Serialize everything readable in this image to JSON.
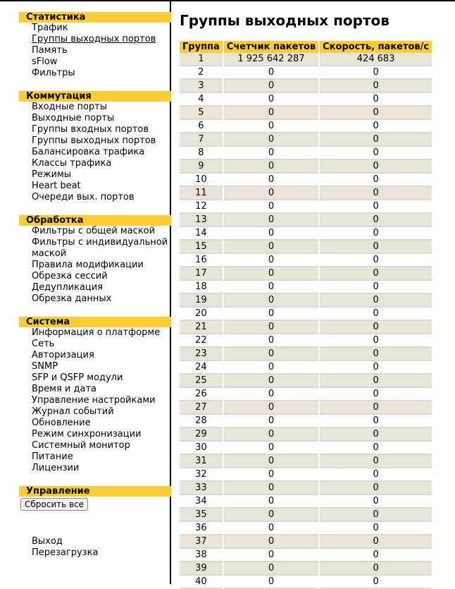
{
  "sidebar": {
    "statistics": {
      "title": "Статистика",
      "items": [
        "Трафик",
        "Группы выходных портов",
        "Память",
        "sFlow",
        "Фильтры"
      ]
    },
    "switching": {
      "title": "Коммутация",
      "items": [
        "Входные порты",
        "Выходные порты",
        "Группы входных портов",
        "Группы выходных портов",
        "Балансировка трафика",
        "Классы трафика",
        "Режимы",
        "Heart beat",
        "Очереди вых. портов"
      ]
    },
    "processing": {
      "title": "Обработка",
      "items": [
        "Фильтры с общей маской",
        "Фильтры с индивидуальной маской",
        "Правила модификации",
        "Обрезка сессий",
        "Дедупликация",
        "Обрезка данных"
      ]
    },
    "system": {
      "title": "Система",
      "items": [
        "Информация о платформе",
        "Сеть",
        "Авторизация",
        "SNMP",
        "SFP и QSFP модули",
        "Время и дата",
        "Управление настройками",
        "Журнал событий",
        "Обновление",
        "Режим синхронизации",
        "Системный монитор",
        "Питание",
        "Лицензии"
      ]
    },
    "management": {
      "title": "Управление",
      "reset_button": "Сбросить все"
    },
    "logout": "Выход",
    "reboot": "Перезагрузка"
  },
  "main": {
    "title": "Группы выходных портов",
    "columns": [
      "Группа",
      "Счетчик пакетов",
      "Скорость, пакетов/с"
    ],
    "rows": [
      [
        "1",
        "1 925 642 287",
        "424 683"
      ],
      [
        "2",
        "0",
        "0"
      ],
      [
        "3",
        "0",
        "0"
      ],
      [
        "4",
        "0",
        "0"
      ],
      [
        "5",
        "0",
        "0"
      ],
      [
        "6",
        "0",
        "0"
      ],
      [
        "7",
        "0",
        "0"
      ],
      [
        "8",
        "0",
        "0"
      ],
      [
        "9",
        "0",
        "0"
      ],
      [
        "10",
        "0",
        "0"
      ],
      [
        "11",
        "0",
        "0"
      ],
      [
        "12",
        "0",
        "0"
      ],
      [
        "13",
        "0",
        "0"
      ],
      [
        "14",
        "0",
        "0"
      ],
      [
        "15",
        "0",
        "0"
      ],
      [
        "16",
        "0",
        "0"
      ],
      [
        "17",
        "0",
        "0"
      ],
      [
        "18",
        "0",
        "0"
      ],
      [
        "19",
        "0",
        "0"
      ],
      [
        "20",
        "0",
        "0"
      ],
      [
        "21",
        "0",
        "0"
      ],
      [
        "22",
        "0",
        "0"
      ],
      [
        "23",
        "0",
        "0"
      ],
      [
        "24",
        "0",
        "0"
      ],
      [
        "25",
        "0",
        "0"
      ],
      [
        "26",
        "0",
        "0"
      ],
      [
        "27",
        "0",
        "0"
      ],
      [
        "28",
        "0",
        "0"
      ],
      [
        "29",
        "0",
        "0"
      ],
      [
        "30",
        "0",
        "0"
      ],
      [
        "31",
        "0",
        "0"
      ],
      [
        "32",
        "0",
        "0"
      ],
      [
        "33",
        "0",
        "0"
      ],
      [
        "34",
        "0",
        "0"
      ],
      [
        "35",
        "0",
        "0"
      ],
      [
        "36",
        "0",
        "0"
      ],
      [
        "37",
        "0",
        "0"
      ],
      [
        "38",
        "0",
        "0"
      ],
      [
        "39",
        "0",
        "0"
      ],
      [
        "40",
        "0",
        "0"
      ]
    ]
  },
  "colors": {
    "header": "#ffcc33",
    "row_alt": "#e8e4d6"
  }
}
